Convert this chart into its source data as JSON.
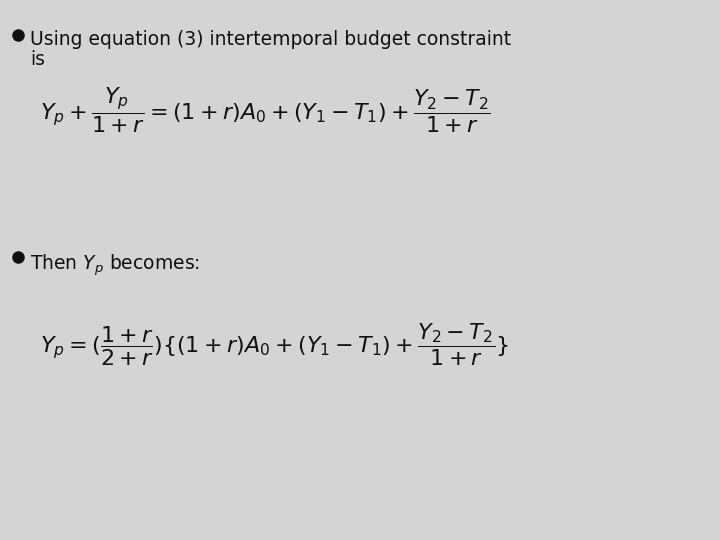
{
  "background_color": "#d4d4d4",
  "text_color": "#111111",
  "bullet_size": 8,
  "text_fontsize": 13.5,
  "eq_fontsize": 16,
  "bullet1_line1": "Using equation (3) intertemporal budget constraint",
  "bullet1_line2": "is",
  "bullet2_text": "Then ",
  "bullet2_Yp": "$Y_p$",
  "bullet2_rest": " becomes:",
  "eq1_left": "$Y_p + \\dfrac{Y_p}{1+r}$",
  "eq1_mid": "$ = (1+r)A_0 + (Y_1 - T_1) + \\dfrac{Y_2 - T_2}{1+r}$",
  "eq2": "$Y_p = (\\dfrac{1+r}{2+r})\\{(1+r)A_0 + (Y_1 - T_1) + \\dfrac{Y_2 - T_2}{1+r}\\}$"
}
